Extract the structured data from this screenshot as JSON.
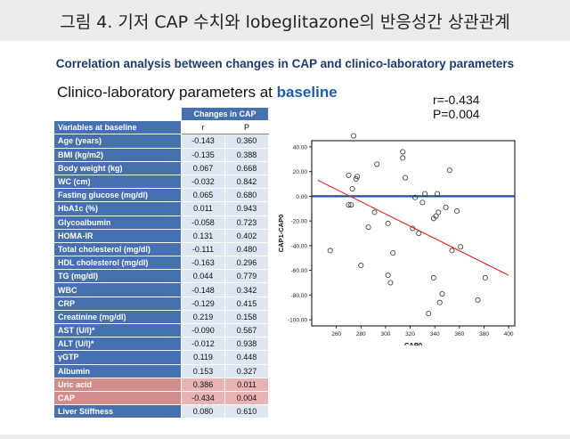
{
  "title": "그림 4. 기저 CAP 수치와 lobeglitazone의 반응성간 상관관계",
  "subtitle": "Correlation analysis between changes in CAP and clinico-laboratory parameters",
  "panel_heading": {
    "prefix": "Clinico-laboratory parameters at",
    "emphasis": "baseline"
  },
  "stats": {
    "r": "r=-0.434",
    "p": "P=0.004"
  },
  "table": {
    "group_header": "Changes in CAP",
    "col_var": "Variables at baseline",
    "col_r": "r",
    "col_p": "P",
    "rows": [
      {
        "name": "Age (years)",
        "r": "-0.143",
        "p": "0.360",
        "highlight": false
      },
      {
        "name": "BMI (kg/m2)",
        "r": "-0.135",
        "p": "0.388",
        "highlight": false
      },
      {
        "name": "Body weight (kg)",
        "r": "0.067",
        "p": "0.668",
        "highlight": false
      },
      {
        "name": "WC (cm)",
        "r": "-0.032",
        "p": "0.842",
        "highlight": false
      },
      {
        "name": "Fasting glucose (mg/dl)",
        "r": "0.065",
        "p": "0.680",
        "highlight": false
      },
      {
        "name": "HbA1c (%)",
        "r": "0.011",
        "p": "0.943",
        "highlight": false
      },
      {
        "name": "Glycoalbumin",
        "r": "-0.058",
        "p": "0.723",
        "highlight": false
      },
      {
        "name": "HOMA-IR",
        "r": "0.131",
        "p": "0.402",
        "highlight": false
      },
      {
        "name": "Total cholesterol (mg/dl)",
        "r": "-0.111",
        "p": "0.480",
        "highlight": false
      },
      {
        "name": "HDL cholesterol (mg/dl)",
        "r": "-0.163",
        "p": "0.296",
        "highlight": false
      },
      {
        "name": "TG (mg/dl)",
        "r": "0.044",
        "p": "0.779",
        "highlight": false
      },
      {
        "name": "WBC",
        "r": "-0.148",
        "p": "0.342",
        "highlight": false
      },
      {
        "name": "CRP",
        "r": "-0.129",
        "p": "0.415",
        "highlight": false
      },
      {
        "name": "Creatinine (mg/dl)",
        "r": "0.219",
        "p": "0.158",
        "highlight": false
      },
      {
        "name": "AST (U/l)*",
        "r": "-0.090",
        "p": "0.567",
        "highlight": false
      },
      {
        "name": "ALT (U/l)*",
        "r": "-0.012",
        "p": "0.938",
        "highlight": false
      },
      {
        "name": "γGTP",
        "r": "0.119",
        "p": "0.448",
        "highlight": false
      },
      {
        "name": "Albumin",
        "r": "0.153",
        "p": "0.327",
        "highlight": false
      },
      {
        "name": "Uric acid",
        "r": "0.386",
        "p": "0.011",
        "highlight": true
      },
      {
        "name": "CAP",
        "r": "-0.434",
        "p": "0.004",
        "highlight": true
      },
      {
        "name": "Liver Stiffness",
        "r": "0.080",
        "p": "0.610",
        "highlight": false
      }
    ]
  },
  "chart_data": {
    "type": "scatter",
    "xlabel": "CAP0",
    "ylabel": "CAP1-CAP0",
    "xlim": [
      240,
      405
    ],
    "ylim": [
      -105,
      45
    ],
    "xticks": [
      260,
      280,
      300,
      320,
      340,
      360,
      380,
      400
    ],
    "yticks": [
      40,
      20,
      0,
      -20,
      -40,
      -60,
      -80,
      -100
    ],
    "ytick_labels": [
      "40.00",
      "20.00",
      "0.00",
      "-20.00",
      "-40.00",
      "-60.00",
      "-80.00",
      "-100.00"
    ],
    "points": [
      [
        255,
        -44
      ],
      [
        270,
        17
      ],
      [
        270,
        -7
      ],
      [
        272,
        -7
      ],
      [
        273,
        6
      ],
      [
        274,
        49
      ],
      [
        276,
        14
      ],
      [
        277,
        16
      ],
      [
        280,
        -56
      ],
      [
        286,
        -25
      ],
      [
        291,
        -13
      ],
      [
        293,
        26
      ],
      [
        302,
        -64
      ],
      [
        302,
        -22
      ],
      [
        304,
        -70
      ],
      [
        306,
        -46
      ],
      [
        314,
        31
      ],
      [
        314,
        36
      ],
      [
        316,
        15
      ],
      [
        322,
        -26
      ],
      [
        324,
        -1
      ],
      [
        327,
        -30
      ],
      [
        330,
        -5
      ],
      [
        332,
        2
      ],
      [
        335,
        -95
      ],
      [
        339,
        -66
      ],
      [
        339,
        -18
      ],
      [
        341,
        -16
      ],
      [
        342,
        2
      ],
      [
        343,
        -13
      ],
      [
        344,
        -86
      ],
      [
        346,
        -79
      ],
      [
        349,
        -9
      ],
      [
        352,
        21
      ],
      [
        354,
        -44
      ],
      [
        358,
        -12
      ],
      [
        361,
        -41
      ],
      [
        375,
        -84
      ],
      [
        381,
        -66
      ]
    ],
    "reference_line": {
      "y": 0,
      "color": "#1f4e9c"
    },
    "fit_line": {
      "x": [
        245,
        400
      ],
      "y": [
        13,
        -64
      ],
      "color": "#e03030"
    },
    "marker_color": "#333333"
  }
}
